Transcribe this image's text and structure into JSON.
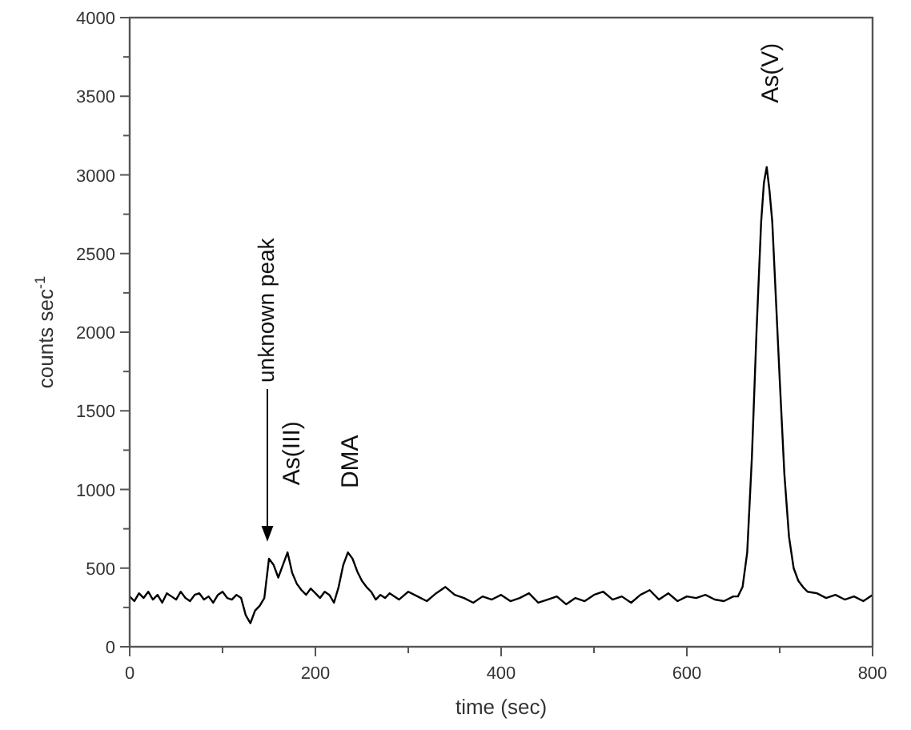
{
  "chart_data": {
    "type": "line",
    "xlabel": "time (sec)",
    "ylabel": "counts sec$^{-1}$",
    "xlim": [
      0,
      800
    ],
    "ylim": [
      0,
      4000
    ],
    "xticks": [
      0,
      {
        "value": 100,
        "label": null
      },
      200,
      {
        "value": 300,
        "label": null
      },
      400,
      {
        "value": 500,
        "label": null
      },
      600,
      {
        "value": 700,
        "label": null
      },
      800
    ],
    "yticks": [
      0,
      {
        "value": 250,
        "label": null
      },
      500,
      {
        "value": 750,
        "label": null
      },
      1000,
      {
        "value": 1250,
        "label": null
      },
      1500,
      {
        "value": 1750,
        "label": null
      },
      2000,
      {
        "value": 2250,
        "label": null
      },
      2500,
      {
        "value": 2750,
        "label": null
      },
      3000,
      {
        "value": 3250,
        "label": null
      },
      3500,
      {
        "value": 3750,
        "label": null
      },
      4000
    ],
    "grid": false,
    "marker": "none",
    "line_style": "solid",
    "series": [
      {
        "color": "#000000",
        "x": [
          0,
          5,
          10,
          15,
          20,
          25,
          30,
          35,
          40,
          45,
          50,
          55,
          60,
          65,
          70,
          75,
          80,
          85,
          90,
          95,
          100,
          105,
          110,
          115,
          120,
          125,
          130,
          135,
          140,
          145,
          150,
          155,
          160,
          165,
          170,
          175,
          180,
          185,
          190,
          195,
          200,
          205,
          210,
          215,
          220,
          225,
          230,
          235,
          240,
          245,
          250,
          255,
          260,
          265,
          270,
          275,
          280,
          290,
          300,
          310,
          320,
          330,
          340,
          350,
          360,
          370,
          380,
          390,
          400,
          410,
          420,
          430,
          440,
          450,
          460,
          470,
          480,
          490,
          500,
          510,
          520,
          530,
          540,
          550,
          560,
          570,
          580,
          590,
          600,
          610,
          620,
          630,
          640,
          650,
          655,
          660,
          665,
          670,
          675,
          680,
          683,
          686,
          689,
          692,
          696,
          700,
          705,
          710,
          715,
          720,
          725,
          730,
          740,
          750,
          760,
          770,
          780,
          790,
          800
        ],
        "values": [
          320,
          290,
          340,
          310,
          350,
          300,
          330,
          280,
          340,
          320,
          300,
          350,
          310,
          290,
          330,
          340,
          300,
          320,
          280,
          330,
          350,
          310,
          300,
          330,
          310,
          200,
          150,
          230,
          260,
          310,
          560,
          520,
          440,
          520,
          600,
          470,
          400,
          360,
          330,
          370,
          340,
          310,
          350,
          330,
          280,
          380,
          520,
          600,
          560,
          480,
          420,
          380,
          350,
          300,
          330,
          310,
          340,
          300,
          350,
          320,
          290,
          340,
          380,
          330,
          310,
          280,
          320,
          300,
          330,
          290,
          310,
          340,
          280,
          300,
          320,
          270,
          310,
          290,
          330,
          350,
          300,
          320,
          280,
          330,
          360,
          300,
          340,
          290,
          320,
          310,
          330,
          300,
          290,
          320,
          320,
          380,
          600,
          1200,
          2000,
          2700,
          2950,
          3050,
          2900,
          2700,
          2200,
          1700,
          1100,
          700,
          500,
          420,
          380,
          350,
          340,
          310,
          330,
          300,
          320,
          290,
          330
        ]
      }
    ],
    "annotations": [
      "unknown peak",
      {
        "text": "As(III)",
        "x": 172,
        "y": 620
      },
      {
        "text": "DMA",
        "x": 235,
        "y": 600
      },
      {
        "text": "As(V)",
        "x": 688,
        "y": 3050
      }
    ]
  }
}
